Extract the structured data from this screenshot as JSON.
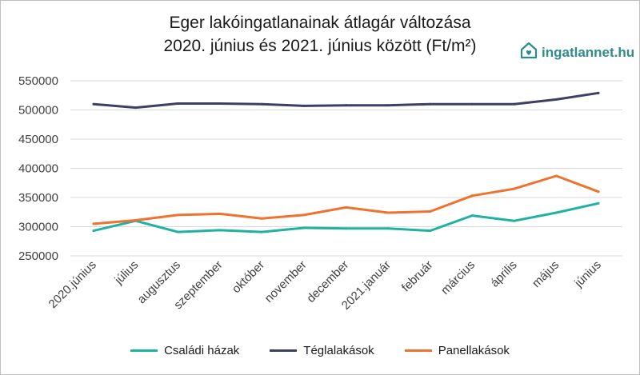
{
  "title_line1": "Eger lakóingatlanainak átlagár változása",
  "title_line2": "2020. június és 2021. június között (Ft/m²)",
  "logo": {
    "text": "ingatlannet.hu",
    "icon": "house-heart-icon",
    "color": "#2e8c8c"
  },
  "chart_data": {
    "type": "line",
    "title": "Eger lakóingatlanainak átlagár változása 2020. június és 2021. június között (Ft/m²)",
    "categories": [
      "2020.június",
      "július",
      "augusztus",
      "szeptember",
      "október",
      "november",
      "december",
      "2021.január",
      "február",
      "március",
      "április",
      "május",
      "június"
    ],
    "ylim": [
      250000,
      550000
    ],
    "yticks": [
      "550000",
      "500000",
      "450000",
      "400000",
      "350000",
      "300000",
      "250000"
    ],
    "grid": true,
    "legend_position": "bottom",
    "series": [
      {
        "name": "Családi házak",
        "color": "#20b2a0",
        "values": [
          293000,
          310000,
          291000,
          294000,
          291000,
          298000,
          297000,
          297000,
          293000,
          319000,
          310000,
          324000,
          340000
        ]
      },
      {
        "name": "Téglalakások",
        "color": "#3f3f64",
        "values": [
          510000,
          504000,
          511000,
          511000,
          510000,
          507000,
          508000,
          508000,
          510000,
          510000,
          510000,
          518000,
          529000
        ]
      },
      {
        "name": "Panellakások",
        "color": "#ef7230",
        "values": [
          305000,
          311000,
          320000,
          322000,
          314000,
          320000,
          333000,
          324000,
          326000,
          353000,
          365000,
          387000,
          360000
        ]
      }
    ]
  }
}
